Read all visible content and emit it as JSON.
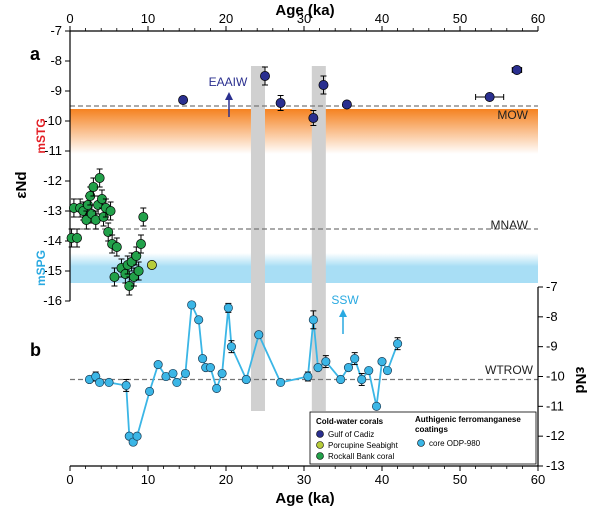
{
  "colors": {
    "gulf_of_cadiz": "#2a2f8f",
    "porcupine_seabight": "#b7cc3a",
    "rockall_bank": "#22a14a",
    "odp980": "#3bb6e6",
    "mow_band_top": "#f58220",
    "mow_band_bottom": "#ffffff",
    "mspg_band": "#a8def5",
    "gray_bar": "#d0d0d0",
    "mstg_label": "#e31e24",
    "mspg_label": "#29a9e1",
    "eaaiw_label": "#2a2f8f",
    "ssw_label": "#29a9e1"
  },
  "chart_data": [
    {
      "type": "scatter",
      "panel": "a",
      "xlabel": "Age (ka)",
      "ylabel": "εNd",
      "xlim": [
        0,
        60
      ],
      "ylim": [
        -16,
        -7
      ],
      "x_ticks": [
        "0",
        "10",
        "20",
        "30",
        "40",
        "50",
        "60"
      ],
      "y_ticks": [
        "-7",
        "-8",
        "-9",
        "-10",
        "-11",
        "-12",
        "-13",
        "-14",
        "-15",
        "-16"
      ],
      "reference_lines": [
        {
          "label": "MOW",
          "y": -9.5
        },
        {
          "label": "MNAW",
          "y": -13.6
        }
      ],
      "bands": [
        {
          "label": "mSTG",
          "y_range": [
            -11.1,
            -9.6
          ]
        },
        {
          "label": "mSPG",
          "y_range": [
            -15.4,
            -14.4
          ]
        }
      ],
      "gray_bars_x": [
        [
          23.2,
          25.0
        ],
        [
          31.0,
          32.8
        ]
      ],
      "annotations": [
        {
          "text": "EAAIW",
          "x": 20.5,
          "y": -8.5,
          "arrow": "up"
        }
      ],
      "series": [
        {
          "name": "Gulf of Cadiz",
          "points": [
            {
              "x": 14.5,
              "y": -9.3,
              "err": 0,
              "xerr": 0
            },
            {
              "x": 25.0,
              "y": -8.5,
              "err": 0.3,
              "xerr": 0
            },
            {
              "x": 27.0,
              "y": -9.4,
              "err": 0.25,
              "xerr": 0
            },
            {
              "x": 31.2,
              "y": -9.9,
              "err": 0.25,
              "xerr": 0
            },
            {
              "x": 32.5,
              "y": -8.8,
              "err": 0.3,
              "xerr": 0
            },
            {
              "x": 35.5,
              "y": -9.45,
              "err": 0,
              "xerr": 0
            },
            {
              "x": 53.8,
              "y": -9.2,
              "err": 0,
              "xerr": 1.8
            },
            {
              "x": 57.3,
              "y": -8.3,
              "err": 0,
              "xerr": 0.6
            }
          ]
        },
        {
          "name": "Porcupine Seabight",
          "points": [
            {
              "x": 10.5,
              "y": -14.8,
              "err": 0,
              "xerr": 0
            }
          ]
        },
        {
          "name": "Rockall Bank coral",
          "points": [
            {
              "x": 0.2,
              "y": -13.9,
              "err": 0.3,
              "xerr": 0
            },
            {
              "x": 0.5,
              "y": -12.9,
              "err": 0.3,
              "xerr": 0
            },
            {
              "x": 0.9,
              "y": -13.9,
              "err": 0.3,
              "xerr": 0
            },
            {
              "x": 1.3,
              "y": -12.9,
              "err": 0.3,
              "xerr": 0
            },
            {
              "x": 1.7,
              "y": -13.0,
              "err": 0.3,
              "xerr": 0
            },
            {
              "x": 2.1,
              "y": -13.3,
              "err": 0.3,
              "xerr": 0
            },
            {
              "x": 2.3,
              "y": -12.8,
              "err": 0.3,
              "xerr": 0
            },
            {
              "x": 2.6,
              "y": -12.5,
              "err": 0.3,
              "xerr": 0
            },
            {
              "x": 2.8,
              "y": -13.1,
              "err": 0.3,
              "xerr": 0
            },
            {
              "x": 3.0,
              "y": -12.2,
              "err": 0.3,
              "xerr": 0
            },
            {
              "x": 3.3,
              "y": -13.3,
              "err": 0.3,
              "xerr": 0
            },
            {
              "x": 3.6,
              "y": -12.8,
              "err": 0.3,
              "xerr": 0
            },
            {
              "x": 3.8,
              "y": -11.9,
              "err": 0.3,
              "xerr": 0
            },
            {
              "x": 4.1,
              "y": -12.6,
              "err": 0.3,
              "xerr": 0
            },
            {
              "x": 4.3,
              "y": -13.2,
              "err": 0.3,
              "xerr": 0
            },
            {
              "x": 4.6,
              "y": -12.9,
              "err": 0.3,
              "xerr": 0
            },
            {
              "x": 4.9,
              "y": -13.7,
              "err": 0.3,
              "xerr": 0
            },
            {
              "x": 5.2,
              "y": -13.0,
              "err": 0.3,
              "xerr": 0
            },
            {
              "x": 5.4,
              "y": -14.1,
              "err": 0.3,
              "xerr": 0
            },
            {
              "x": 5.7,
              "y": -15.2,
              "err": 0.3,
              "xerr": 0
            },
            {
              "x": 6.0,
              "y": -14.2,
              "err": 0.3,
              "xerr": 0
            },
            {
              "x": 6.6,
              "y": -14.9,
              "err": 0.3,
              "xerr": 0
            },
            {
              "x": 7.1,
              "y": -15.1,
              "err": 0.3,
              "xerr": 0
            },
            {
              "x": 7.4,
              "y": -14.8,
              "err": 0.3,
              "xerr": 0
            },
            {
              "x": 7.6,
              "y": -15.5,
              "err": 0.3,
              "xerr": 0
            },
            {
              "x": 7.9,
              "y": -14.7,
              "err": 0.3,
              "xerr": 0
            },
            {
              "x": 8.2,
              "y": -15.2,
              "err": 0.3,
              "xerr": 0
            },
            {
              "x": 8.5,
              "y": -14.5,
              "err": 0.3,
              "xerr": 0
            },
            {
              "x": 8.8,
              "y": -15.0,
              "err": 0.3,
              "xerr": 0
            },
            {
              "x": 9.1,
              "y": -14.1,
              "err": 0.3,
              "xerr": 0
            },
            {
              "x": 9.4,
              "y": -13.2,
              "err": 0.3,
              "xerr": 0
            }
          ]
        }
      ]
    },
    {
      "type": "line",
      "panel": "b",
      "xlabel": "Age (ka)",
      "ylabel": "εNd",
      "xlim": [
        0,
        60
      ],
      "ylim": [
        -13,
        -7
      ],
      "x_ticks": [
        "0",
        "10",
        "20",
        "30",
        "40",
        "50",
        "60"
      ],
      "y_ticks": [
        "-7",
        "-8",
        "-9",
        "-10",
        "-11",
        "-12",
        "-13"
      ],
      "reference_lines": [
        {
          "label": "WTROW",
          "y": -10.1
        }
      ],
      "annotations": [
        {
          "text": "SSW",
          "x": 35,
          "y": -8.0,
          "arrow": "up"
        }
      ],
      "series": [
        {
          "name": "core ODP-980",
          "points": [
            {
              "x": 2.5,
              "y": -10.1,
              "err": 0
            },
            {
              "x": 3.3,
              "y": -10.0,
              "err": 0.15
            },
            {
              "x": 3.8,
              "y": -10.2,
              "err": 0
            },
            {
              "x": 5.0,
              "y": -10.2,
              "err": 0
            },
            {
              "x": 7.2,
              "y": -10.3,
              "err": 0.2
            },
            {
              "x": 7.6,
              "y": -12.0,
              "err": 0
            },
            {
              "x": 8.1,
              "y": -12.2,
              "err": 0
            },
            {
              "x": 8.6,
              "y": -12.0,
              "err": 0
            },
            {
              "x": 10.2,
              "y": -10.5,
              "err": 0
            },
            {
              "x": 11.3,
              "y": -9.6,
              "err": 0
            },
            {
              "x": 12.3,
              "y": -10.0,
              "err": 0
            },
            {
              "x": 13.2,
              "y": -9.9,
              "err": 0
            },
            {
              "x": 13.7,
              "y": -10.2,
              "err": 0
            },
            {
              "x": 14.8,
              "y": -9.9,
              "err": 0
            },
            {
              "x": 15.6,
              "y": -7.6,
              "err": 0
            },
            {
              "x": 16.5,
              "y": -8.1,
              "err": 0
            },
            {
              "x": 17.0,
              "y": -9.4,
              "err": 0
            },
            {
              "x": 17.4,
              "y": -9.7,
              "err": 0
            },
            {
              "x": 18.0,
              "y": -9.7,
              "err": 0
            },
            {
              "x": 18.8,
              "y": -10.4,
              "err": 0
            },
            {
              "x": 19.5,
              "y": -9.9,
              "err": 0
            },
            {
              "x": 20.3,
              "y": -7.7,
              "err": 0.15
            },
            {
              "x": 20.7,
              "y": -9.0,
              "err": 0.2
            },
            {
              "x": 22.6,
              "y": -10.1,
              "err": 0
            },
            {
              "x": 24.2,
              "y": -8.6,
              "err": 0
            },
            {
              "x": 27.0,
              "y": -10.2,
              "err": 0
            },
            {
              "x": 30.5,
              "y": -10.0,
              "err": 0.15
            },
            {
              "x": 31.2,
              "y": -8.1,
              "err": 0.3
            },
            {
              "x": 31.8,
              "y": -9.7,
              "err": 0
            },
            {
              "x": 32.8,
              "y": -9.5,
              "err": 0.2
            },
            {
              "x": 34.7,
              "y": -10.1,
              "err": 0
            },
            {
              "x": 35.7,
              "y": -9.7,
              "err": 0
            },
            {
              "x": 36.5,
              "y": -9.4,
              "err": 0.2
            },
            {
              "x": 37.4,
              "y": -10.1,
              "err": 0.2
            },
            {
              "x": 38.3,
              "y": -9.8,
              "err": 0
            },
            {
              "x": 39.3,
              "y": -11.0,
              "err": 0
            },
            {
              "x": 40.0,
              "y": -9.5,
              "err": 0
            },
            {
              "x": 40.7,
              "y": -9.8,
              "err": 0
            },
            {
              "x": 42.0,
              "y": -8.9,
              "err": 0.2
            }
          ]
        }
      ]
    }
  ],
  "legend": {
    "corals_heading": "Cold-water corals",
    "coatings_heading_line1": "Authigenic ferromanganese",
    "coatings_heading_line2": "coatings",
    "items": {
      "gulf": "Gulf of Cadiz",
      "porcupine": "Porcupine Seabight",
      "rockall": "Rockall Bank coral",
      "odp": "core ODP-980"
    }
  },
  "labels": {
    "panel_a": "a",
    "panel_b": "b",
    "top_xlabel": "Age (ka)",
    "bottom_xlabel": "Age (ka)",
    "ylabel_a": "εNd",
    "ylabel_b": "εNd",
    "mow": "MOW",
    "mnaw": "MNAW",
    "wtrow": "WTROW",
    "mstg": "mSTG",
    "mspg": "mSPG",
    "eaaiw": "EAAIW",
    "ssw": "SSW"
  }
}
